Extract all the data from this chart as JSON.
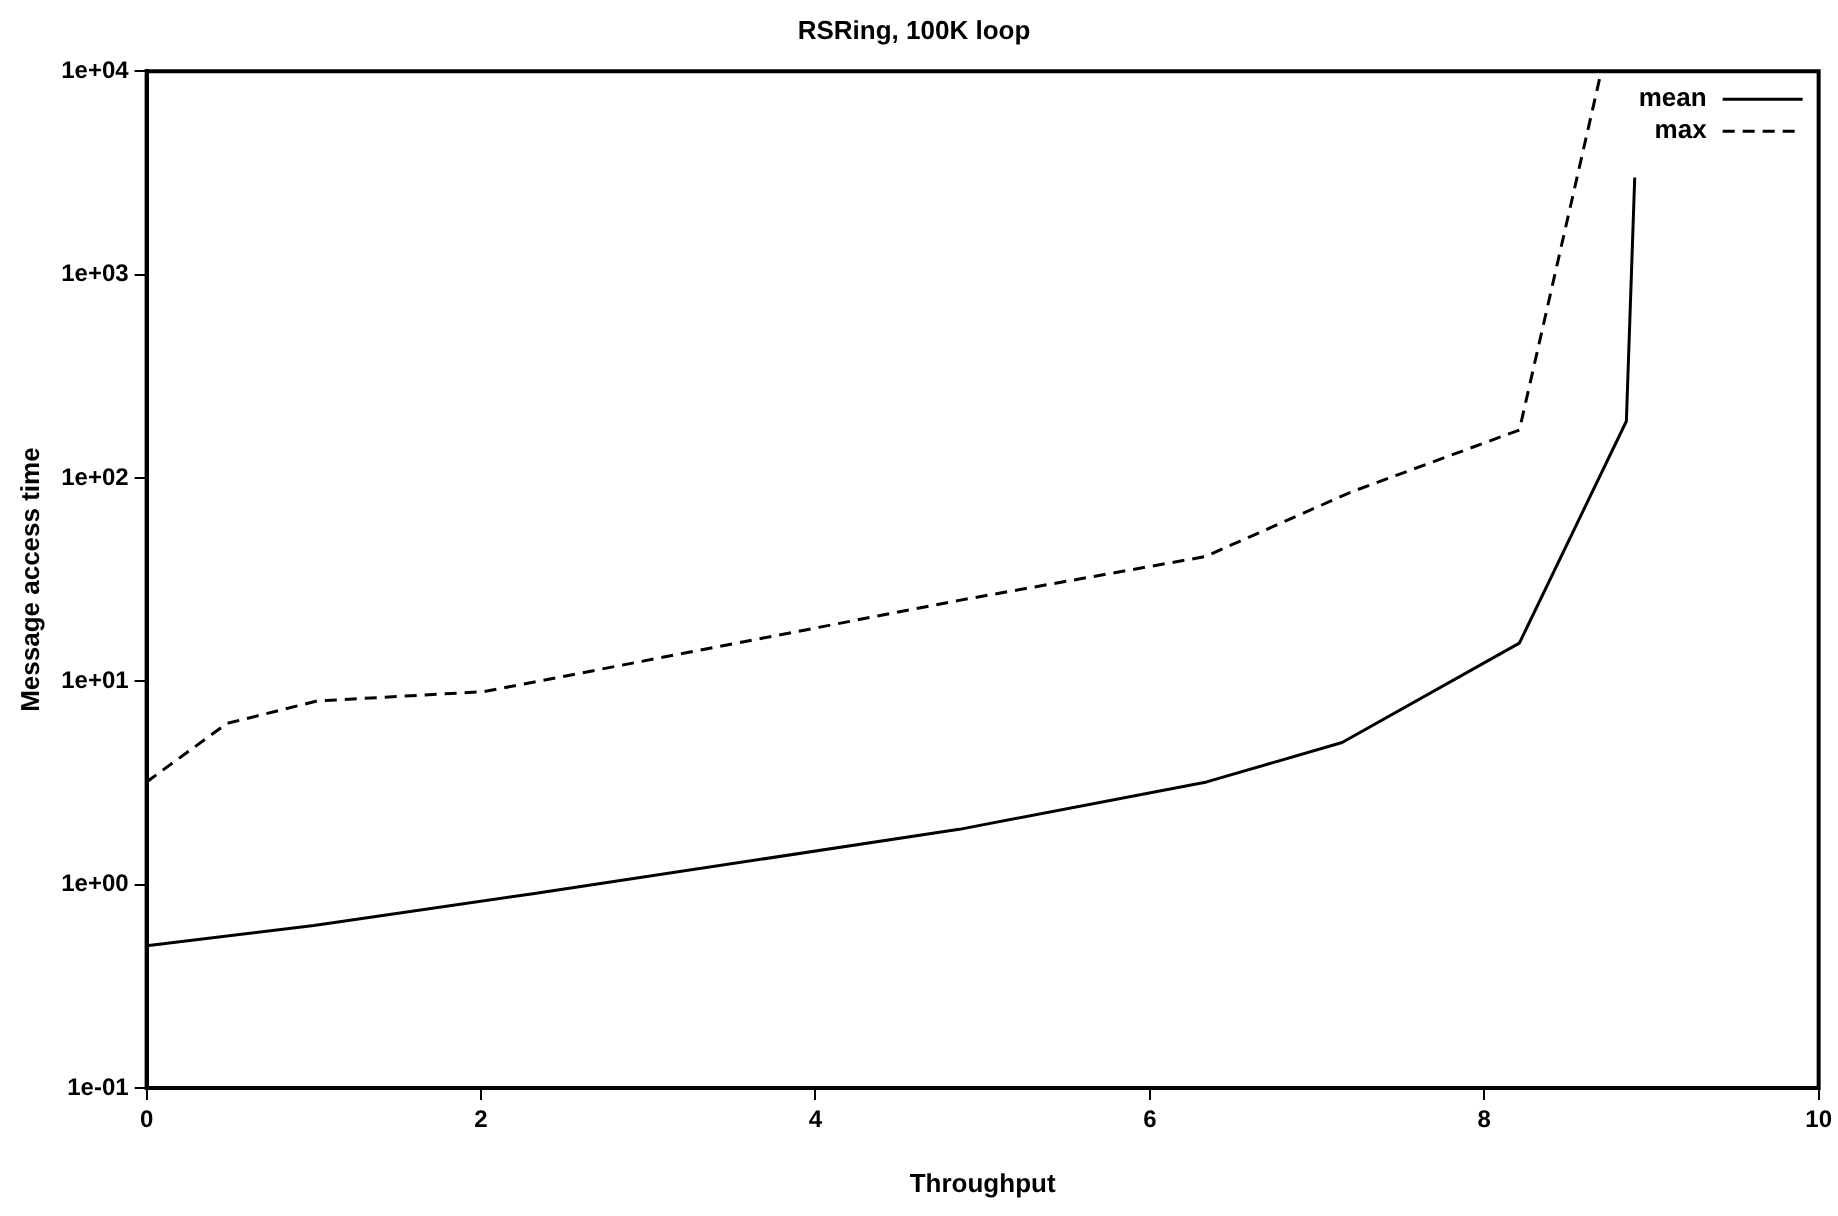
{
  "chart_data": {
    "type": "line",
    "title": "RSRing, 100K loop",
    "xlabel": "Throughput",
    "ylabel": "Message access time",
    "log": "y",
    "grid": false,
    "legend": "top right",
    "marker": "none",
    "xlim": [
      0,
      10
    ],
    "xticks": [
      0,
      2,
      4,
      6,
      8,
      10
    ],
    "ylim": [
      0.1,
      10000
    ],
    "yticks": [
      {
        "value": 0.1,
        "label": "1e-01"
      },
      {
        "value": 1,
        "label": "1e+00"
      },
      {
        "value": 10,
        "label": "1e+01"
      },
      {
        "value": 100,
        "label": "1e+02"
      },
      {
        "value": 1000,
        "label": "1e+03"
      },
      {
        "value": 10000,
        "label": "1e+04"
      }
    ],
    "series": [
      {
        "name": "mean",
        "color": "#000000",
        "line_style": "solid",
        "x": [
          0,
          1,
          2.3,
          4.86,
          6.34,
          7.15,
          8.21,
          8.85,
          8.9
        ],
        "values": [
          0.5,
          0.63,
          0.9,
          1.87,
          3.2,
          5,
          15.4,
          190,
          3000
        ]
      },
      {
        "name": "max",
        "color": "#000000",
        "line_style": "dashed",
        "x": [
          0,
          0.48,
          1.02,
          2.02,
          4.86,
          6.33,
          7.2,
          8.21,
          8.7
        ],
        "values": [
          3.2,
          6.2,
          8,
          8.9,
          25,
          41,
          85,
          172,
          10000
        ]
      }
    ]
  }
}
